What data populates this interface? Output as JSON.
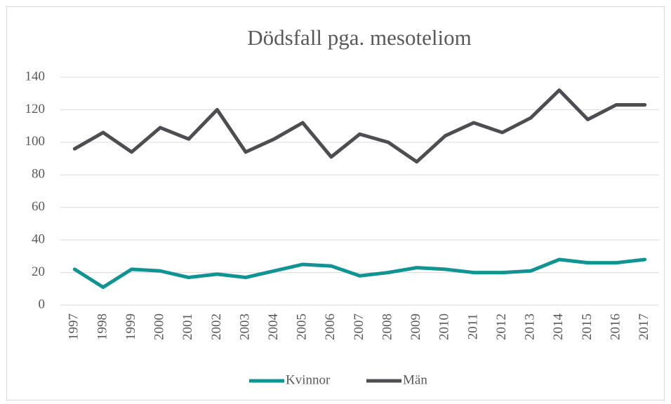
{
  "chart_data": {
    "type": "line",
    "title": "Dödsfall pga. mesoteliom",
    "categories": [
      "1997",
      "1998",
      "1999",
      "2000",
      "2001",
      "2002",
      "2003",
      "2004",
      "2005",
      "2006",
      "2007",
      "2008",
      "2009",
      "2010",
      "2011",
      "2012",
      "2013",
      "2014",
      "2015",
      "2016",
      "2017"
    ],
    "series": [
      {
        "name": "Kvinnor",
        "color": "#109393",
        "values": [
          22,
          11,
          22,
          21,
          17,
          19,
          17,
          21,
          25,
          24,
          18,
          20,
          23,
          22,
          20,
          20,
          21,
          28,
          26,
          26,
          28
        ]
      },
      {
        "name": "Män",
        "color": "#4d4d52",
        "values": [
          96,
          106,
          94,
          109,
          102,
          120,
          94,
          102,
          112,
          91,
          105,
          100,
          88,
          104,
          112,
          106,
          115,
          132,
          114,
          123,
          123
        ]
      }
    ],
    "ylim": [
      0,
      140
    ],
    "yticks": [
      0,
      20,
      40,
      60,
      80,
      100,
      120,
      140
    ],
    "grid": true,
    "legend": "bottom"
  }
}
